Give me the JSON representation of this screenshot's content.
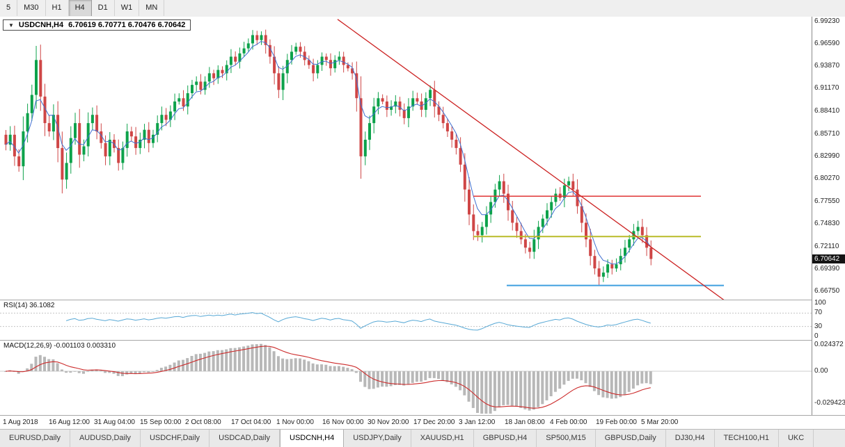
{
  "toolbar": {
    "timeframes": [
      {
        "label": "5",
        "active": false
      },
      {
        "label": "M30",
        "active": false
      },
      {
        "label": "H1",
        "active": false
      },
      {
        "label": "H4",
        "active": true
      },
      {
        "label": "D1",
        "active": false
      },
      {
        "label": "W1",
        "active": false
      },
      {
        "label": "MN",
        "active": false
      }
    ]
  },
  "chart": {
    "title": "USDCNH,H4",
    "ohlc_text": "6.70619 6.70771 6.70476 6.70642"
  },
  "chart_data": {
    "type": "candlestick",
    "symbol": "USDCNH",
    "timeframe": "H4",
    "title": "USDCNH,H4 6.70619 6.70771 6.70476 6.70642",
    "open": 6.70619,
    "high": 6.70771,
    "low": 6.70476,
    "close": 6.70642,
    "current_price": "6.70642",
    "ylim": [
      6.6675,
      6.9923
    ],
    "price_ticks": [
      "6.99230",
      "6.96590",
      "6.93870",
      "6.91170",
      "6.88410",
      "6.85710",
      "6.82990",
      "6.80270",
      "6.77550",
      "6.74830",
      "6.72110",
      "6.69390",
      "6.66750"
    ],
    "x_labels": [
      "1 Aug 2018",
      "16 Aug 12:00",
      "31 Aug 04:00",
      "15 Sep 00:00",
      "2 Oct 08:00",
      "17 Oct 04:00",
      "1 Nov 00:00",
      "16 Nov 00:00",
      "30 Nov 20:00",
      "17 Dec 20:00",
      "3 Jan 12:00",
      "18 Jan 08:00",
      "4 Feb 00:00",
      "19 Feb 00:00",
      "5 Mar 20:00"
    ],
    "closes": [
      6.844,
      6.856,
      6.83,
      6.818,
      6.86,
      6.882,
      6.904,
      6.946,
      6.902,
      6.87,
      6.86,
      6.88,
      6.84,
      6.802,
      6.822,
      6.852,
      6.87,
      6.832,
      6.842,
      6.87,
      6.88,
      6.86,
      6.846,
      6.83,
      6.85,
      6.84,
      6.822,
      6.84,
      6.86,
      6.854,
      6.84,
      6.85,
      6.862,
      6.846,
      6.856,
      6.87,
      6.88,
      6.874,
      6.884,
      6.896,
      6.9,
      6.89,
      6.906,
      6.916,
      6.92,
      6.91,
      6.92,
      6.93,
      6.924,
      6.934,
      6.93,
      6.94,
      6.95,
      6.944,
      6.954,
      6.96,
      6.966,
      6.976,
      6.97,
      6.976,
      6.964,
      6.95,
      6.93,
      6.91,
      6.93,
      6.946,
      6.956,
      6.962,
      6.956,
      6.946,
      6.94,
      6.93,
      6.94,
      6.95,
      6.946,
      6.936,
      6.946,
      6.95,
      6.94,
      6.936,
      6.93,
      6.9,
      6.83,
      6.85,
      6.87,
      6.89,
      6.9,
      6.896,
      6.886,
      6.89,
      6.896,
      6.886,
      6.876,
      6.89,
      6.9,
      6.896,
      6.886,
      6.9,
      6.91,
      6.89,
      6.88,
      6.87,
      6.86,
      6.85,
      6.84,
      6.82,
      6.79,
      6.76,
      6.74,
      6.735,
      6.745,
      6.76,
      6.775,
      6.79,
      6.8,
      6.785,
      6.765,
      6.75,
      6.74,
      6.73,
      6.72,
      6.715,
      6.73,
      6.745,
      6.755,
      6.765,
      6.775,
      6.785,
      6.78,
      6.795,
      6.8,
      6.79,
      6.77,
      6.75,
      6.73,
      6.71,
      6.695,
      6.685,
      6.69,
      6.7,
      6.695,
      6.7,
      6.71,
      6.72,
      6.73,
      6.74,
      6.745,
      6.735,
      6.72,
      6.7064
    ],
    "overlays": {
      "trendline": {
        "x1_frac": 0.416,
        "price1": 6.995,
        "x2_frac": 0.892,
        "price2": 6.657,
        "color": "#cc2222",
        "width": 1.3
      },
      "hlines": [
        {
          "price": 6.782,
          "x1_frac": 0.583,
          "x2_frac": 0.864,
          "color": "#e03535",
          "width": 1.5
        },
        {
          "price": 6.7335,
          "x1_frac": 0.583,
          "x2_frac": 0.864,
          "color": "#b9bb28",
          "width": 2
        },
        {
          "price": 6.6745,
          "x1_frac": 0.624,
          "x2_frac": 0.892,
          "color": "#3f9fdf",
          "width": 2
        }
      ]
    },
    "indicators": {
      "rsi": {
        "label": "RSI(14) 36.1082",
        "period": 14,
        "levels": [
          100,
          70,
          30,
          0
        ],
        "color": "#57a8d5"
      },
      "macd": {
        "label": "MACD(12,26,9) -0.001103 0.003310",
        "fast": 12,
        "slow": 26,
        "signal": 9,
        "scale_max": "0.024372",
        "scale_zero": "0.00",
        "scale_min": "-0.029423",
        "histogram_color": "#b8b8b8",
        "signal_color": "#cc2b2b"
      }
    },
    "colors": {
      "up": "#0da24b",
      "down": "#cf4646",
      "ma": "#3e6fd0",
      "trend": "#cc2222"
    }
  },
  "tabs": [
    {
      "label": "EURUSD,Daily",
      "active": false
    },
    {
      "label": "AUDUSD,Daily",
      "active": false
    },
    {
      "label": "USDCHF,Daily",
      "active": false
    },
    {
      "label": "USDCAD,Daily",
      "active": false
    },
    {
      "label": "USDCNH,H4",
      "active": true
    },
    {
      "label": "USDJPY,Daily",
      "active": false
    },
    {
      "label": "XAUUSD,H1",
      "active": false
    },
    {
      "label": "GBPUSD,H4",
      "active": false
    },
    {
      "label": "SP500,M15",
      "active": false
    },
    {
      "label": "GBPUSD,Daily",
      "active": false
    },
    {
      "label": "DJ30,H4",
      "active": false
    },
    {
      "label": "TECH100,H1",
      "active": false
    },
    {
      "label": "UKC",
      "active": false
    }
  ]
}
